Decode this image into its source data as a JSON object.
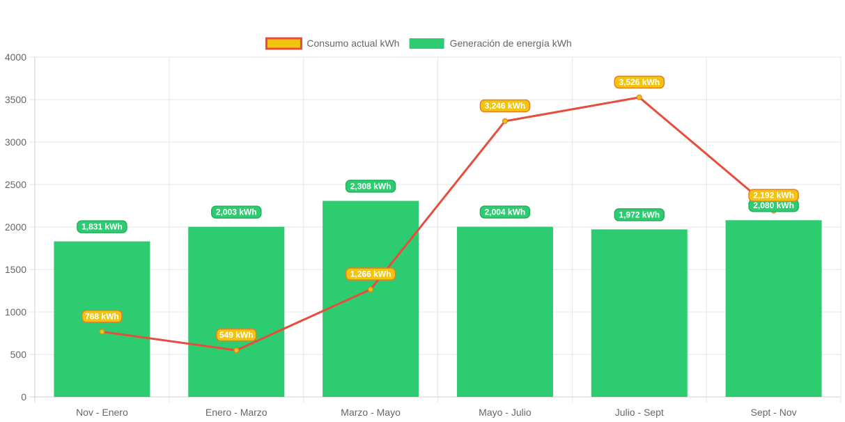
{
  "chart_data": {
    "type": "bar",
    "categories": [
      "Nov - Enero",
      "Enero - Marzo",
      "Marzo - Mayo",
      "Mayo - Julio",
      "Julio - Sept",
      "Sept - Nov"
    ],
    "ylim": [
      0,
      4000
    ],
    "yticks": [
      0,
      500,
      1000,
      1500,
      2000,
      2500,
      3000,
      3500,
      4000
    ],
    "grid": true,
    "legend_position": "top",
    "series": [
      {
        "name": "Consumo actual kWh",
        "type": "line",
        "values": [
          768,
          549,
          1266,
          3246,
          3526,
          2192
        ],
        "labels": [
          "768 kWh",
          "549 kWh",
          "1,266 kWh",
          "3,246 kWh",
          "3,526 kWh",
          "2,192 kWh"
        ],
        "line_color": "#e74c3c",
        "fill_color": "#f1c40f"
      },
      {
        "name": "Generación de energía kWh",
        "type": "bar",
        "values": [
          1831,
          2003,
          2308,
          2004,
          1972,
          2080
        ],
        "labels": [
          "1,831 kWh",
          "2,003 kWh",
          "2,308 kWh",
          "2,004 kWh",
          "1,972 kWh",
          "2,080 kWh"
        ],
        "color": "#2ecc71"
      }
    ]
  }
}
